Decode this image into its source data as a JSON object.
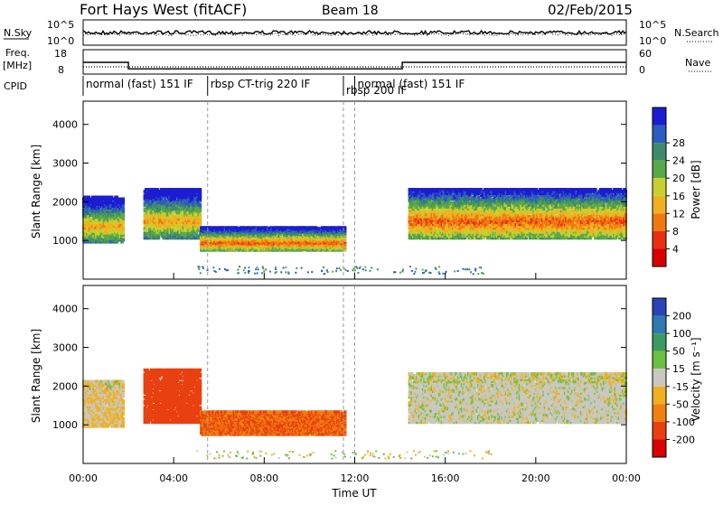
{
  "header": {
    "title": "Fort Hays West (fitACF)",
    "beam": "Beam 18",
    "date": "02/Feb/2015"
  },
  "top_labels": {
    "nsky": "N.Sky",
    "nsearch": "N.Search",
    "freq_line1": "Freq.",
    "freq_line2": "[MHz]",
    "nave": "Nave",
    "cpid": "CPID",
    "noise_tick_hi": "10^5",
    "noise_tick_lo": "10^0",
    "noise_tick_hi_r": "10^5",
    "noise_tick_lo_r": "10^0",
    "freq_tick_hi": "18",
    "freq_tick_lo": "8",
    "nave_tick_hi": "60",
    "nave_tick_lo": "0"
  },
  "cpid_segments": [
    {
      "label": "normal (fast) 151 IF",
      "start_h": 0.0,
      "end_h": 5.5
    },
    {
      "label": "rbsp CT-trig 220 IF",
      "start_h": 5.5,
      "end_h": 11.5
    },
    {
      "label": "rbsp 200 IF",
      "start_h": 11.5,
      "end_h": 12.0
    },
    {
      "label": "normal (fast) 151 IF",
      "start_h": 12.0,
      "end_h": 24.0
    }
  ],
  "frequency_steps": [
    {
      "start_h": 0.0,
      "end_h": 2.0,
      "mhz": 13
    },
    {
      "start_h": 2.0,
      "end_h": 14.1,
      "mhz": 10
    },
    {
      "start_h": 14.1,
      "end_h": 24.0,
      "mhz": 13
    }
  ],
  "dashed_markers_h": [
    5.5,
    11.5,
    12.0
  ],
  "power_cbar": {
    "label": "Power [dB]",
    "ticks": [
      "4",
      "8",
      "12",
      "16",
      "20",
      "24",
      "28"
    ],
    "colors": [
      "#1c1cd2",
      "#2d5cc0",
      "#3f8a6a",
      "#58aa48",
      "#c8d030",
      "#f0b020",
      "#f07810",
      "#e83010",
      "#d80000"
    ]
  },
  "velocity_cbar": {
    "label": "Velocity [m s⁻¹]",
    "ticks": [
      "200",
      "100",
      "50",
      "15",
      "-15",
      "-50",
      "-100",
      "-200"
    ],
    "colors": [
      "#2a44b8",
      "#2e7ab0",
      "#3a9a62",
      "#6cc040",
      "#c8c8c0",
      "#f0b020",
      "#f08010",
      "#e84010",
      "#d80000"
    ]
  },
  "chart_data": [
    {
      "type": "heatmap",
      "title": "Power",
      "xlabel": "",
      "ylabel": "Slant Range [km]",
      "xlim": [
        "00:00",
        "24:00"
      ],
      "ylim": [
        0,
        4600
      ],
      "yticks": [
        "1000",
        "2000",
        "3000",
        "4000"
      ],
      "grid": false,
      "echo_regions": [
        {
          "start_h": 0.0,
          "end_h": 1.8,
          "range_km": [
            900,
            2100
          ],
          "peak_db": 24
        },
        {
          "start_h": 2.7,
          "end_h": 5.2,
          "range_km": [
            1000,
            2300
          ],
          "peak_db": 24
        },
        {
          "start_h": 5.2,
          "end_h": 11.6,
          "range_km": [
            700,
            1300
          ],
          "peak_db": 28
        },
        {
          "start_h": 14.4,
          "end_h": 24.0,
          "range_km": [
            1000,
            2300
          ],
          "peak_db": 28
        }
      ]
    },
    {
      "type": "heatmap",
      "title": "Velocity",
      "xlabel": "Time UT",
      "ylabel": "Slant Range [km]",
      "xlim": [
        "00:00",
        "24:00"
      ],
      "ylim": [
        0,
        4600
      ],
      "yticks": [
        "1000",
        "2000",
        "3000",
        "4000"
      ],
      "xticks": [
        "00:00",
        "04:00",
        "08:00",
        "12:00",
        "16:00",
        "20:00",
        "00:00"
      ],
      "grid": false,
      "echo_regions": [
        {
          "start_h": 0.0,
          "end_h": 1.8,
          "range_km": [
            900,
            2100
          ],
          "velocity": -15
        },
        {
          "start_h": 2.7,
          "end_h": 5.2,
          "range_km": [
            1000,
            2400
          ],
          "velocity": -150
        },
        {
          "start_h": 5.2,
          "end_h": 11.6,
          "range_km": [
            700,
            1300
          ],
          "velocity": -100
        },
        {
          "start_h": 14.4,
          "end_h": 24.0,
          "range_km": [
            1000,
            2300
          ],
          "velocity": 0
        }
      ]
    }
  ]
}
